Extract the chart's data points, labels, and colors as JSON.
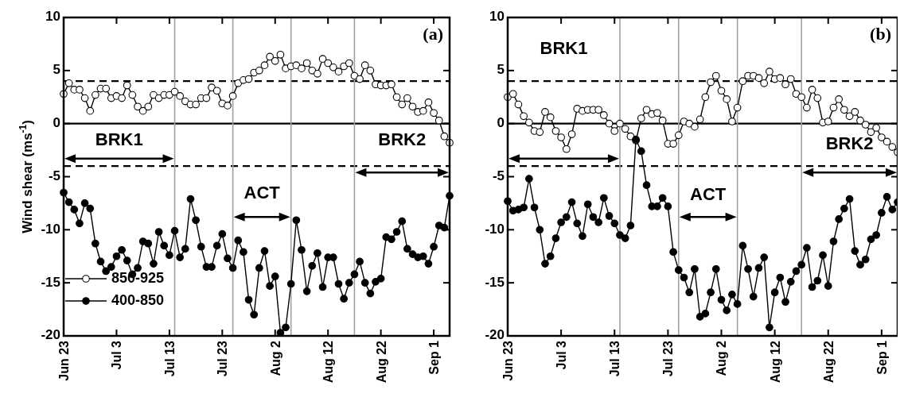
{
  "chart_data": [
    {
      "type": "line",
      "ylabel": "Wind shear (ms$^{-1}$)",
      "x": [
        "--06-23",
        "--06-24",
        "--06-25",
        "--06-26",
        "--06-27",
        "--06-28",
        "--06-29",
        "--06-30",
        "--07-01",
        "--07-02",
        "--07-03",
        "--07-04",
        "--07-05",
        "--07-06",
        "--07-07",
        "--07-08",
        "--07-09",
        "--07-10",
        "--07-11",
        "--07-12",
        "--07-13",
        "--07-14",
        "--07-15",
        "--07-16",
        "--07-17",
        "--07-18",
        "--07-19",
        "--07-20",
        "--07-21",
        "--07-22",
        "--07-23",
        "--07-24",
        "--07-25",
        "--07-26",
        "--07-27",
        "--07-28",
        "--07-29",
        "--07-30",
        "--07-31",
        "--08-01",
        "--08-02",
        "--08-03",
        "--08-04",
        "--08-05",
        "--08-06",
        "--08-07",
        "--08-08",
        "--08-09",
        "--08-10",
        "--08-11",
        "--08-12",
        "--08-13",
        "--08-14",
        "--08-15",
        "--08-16",
        "--08-17",
        "--08-18",
        "--08-19",
        "--08-20",
        "--08-21",
        "--08-22",
        "--08-23",
        "--08-24",
        "--08-25",
        "--08-26",
        "--08-27",
        "--08-28",
        "--08-29",
        "--08-30",
        "--08-31",
        "--09-01",
        "--09-02",
        "--09-03",
        "--09-04"
      ],
      "xlim": [
        "--06-23",
        "--09-04"
      ],
      "xticks": [
        {
          "value": "--06-23",
          "label": "Jun 23"
        },
        {
          "value": "--07-03",
          "label": "Jul 3"
        },
        {
          "value": "--07-13",
          "label": "Jul 13"
        },
        {
          "value": "--07-23",
          "label": "Jul 23"
        },
        {
          "value": "--08-02",
          "label": "Aug 2"
        },
        {
          "value": "--08-12",
          "label": "Aug 12"
        },
        {
          "value": "--08-22",
          "label": "Aug 22"
        },
        {
          "value": "--09-01",
          "label": "Sep 1"
        }
      ],
      "ylim": [
        -20,
        10
      ],
      "yticks": [
        -20,
        -15,
        -10,
        -5,
        0,
        5,
        10
      ],
      "series": [
        {
          "name": "850-925",
          "color": "#ffffff",
          "values": [
            2.8,
            3.8,
            3.2,
            3.2,
            2.4,
            1.2,
            2.7,
            3.3,
            3.3,
            2.4,
            2.6,
            2.4,
            3.6,
            2.7,
            1.6,
            1.2,
            1.6,
            2.7,
            2.4,
            2.7,
            2.7,
            3.0,
            2.6,
            2.1,
            1.8,
            1.8,
            2.4,
            2.4,
            3.4,
            3.1,
            1.9,
            1.7,
            2.6,
            3.8,
            4.1,
            4.2,
            4.8,
            5.0,
            5.5,
            6.3,
            5.9,
            6.5,
            5.2,
            5.4,
            5.5,
            5.2,
            5.7,
            5.0,
            4.7,
            6.1,
            5.7,
            5.3,
            4.9,
            5.4,
            5.7,
            4.5,
            4.2,
            5.5,
            5.0,
            3.7,
            3.6,
            3.6,
            3.7,
            2.5,
            1.8,
            2.4,
            1.6,
            1.1,
            1.2,
            2.0,
            1.0,
            0.3,
            -1.2,
            -1.8
          ]
        },
        {
          "name": "400-850",
          "color": "#000000",
          "values": [
            -6.5,
            -7.4,
            -8.1,
            -9.4,
            -7.5,
            -8.0,
            -11.3,
            -13.0,
            -13.9,
            -13.5,
            -12.5,
            -11.9,
            -12.9,
            -14.2,
            -13.6,
            -11.1,
            -11.3,
            -13.2,
            -10.2,
            -11.5,
            -12.4,
            -10.1,
            -12.6,
            -11.8,
            -7.1,
            -9.1,
            -11.6,
            -13.5,
            -13.5,
            -11.5,
            -10.4,
            -12.7,
            -13.6,
            -11.0,
            -12.1,
            -16.6,
            -18.0,
            -13.6,
            -12.0,
            -15.3,
            -14.4,
            -19.7,
            -19.2,
            -15.1,
            -9.1,
            -11.9,
            -15.8,
            -13.4,
            -12.2,
            -15.4,
            -12.6,
            -12.6,
            -15.1,
            -16.5,
            -15.0,
            -14.2,
            -13.0,
            -15.0,
            -16.0,
            -14.9,
            -14.6,
            -10.7,
            -10.9,
            -10.2,
            -9.2,
            -11.8,
            -12.3,
            -12.6,
            -12.5,
            -13.2,
            -11.6,
            -9.6,
            -9.8,
            -6.8
          ]
        }
      ],
      "marker": "circle",
      "line_style": "solid",
      "legend": "bottom left",
      "ref_lines": [
        {
          "axis": "y",
          "value": 4,
          "color": "#000000",
          "line_style": "dashed"
        },
        {
          "axis": "y",
          "value": -4,
          "color": "#000000",
          "line_style": "dashed"
        },
        {
          "axis": "y",
          "value": 0,
          "color": "#000000",
          "line_style": "solid"
        },
        {
          "axis": "x",
          "value": "--07-14",
          "color": "#a0a0a0",
          "line_style": "solid"
        },
        {
          "axis": "x",
          "value": "--07-25",
          "color": "#a0a0a0",
          "line_style": "solid"
        },
        {
          "axis": "x",
          "value": "--08-05",
          "color": "#a0a0a0",
          "line_style": "solid"
        },
        {
          "axis": "x",
          "value": "--08-17",
          "color": "#a0a0a0",
          "line_style": "solid"
        }
      ],
      "annotations": [
        "BRK1",
        "ACT",
        "BRK2",
        "(a)"
      ]
    },
    {
      "type": "line",
      "x": [
        "--06-23",
        "--06-24",
        "--06-25",
        "--06-26",
        "--06-27",
        "--06-28",
        "--06-29",
        "--06-30",
        "--07-01",
        "--07-02",
        "--07-03",
        "--07-04",
        "--07-05",
        "--07-06",
        "--07-07",
        "--07-08",
        "--07-09",
        "--07-10",
        "--07-11",
        "--07-12",
        "--07-13",
        "--07-14",
        "--07-15",
        "--07-16",
        "--07-17",
        "--07-18",
        "--07-19",
        "--07-20",
        "--07-21",
        "--07-22",
        "--07-23",
        "--07-24",
        "--07-25",
        "--07-26",
        "--07-27",
        "--07-28",
        "--07-29",
        "--07-30",
        "--07-31",
        "--08-01",
        "--08-02",
        "--08-03",
        "--08-04",
        "--08-05",
        "--08-06",
        "--08-07",
        "--08-08",
        "--08-09",
        "--08-10",
        "--08-11",
        "--08-12",
        "--08-13",
        "--08-14",
        "--08-15",
        "--08-16",
        "--08-17",
        "--08-18",
        "--08-19",
        "--08-20",
        "--08-21",
        "--08-22",
        "--08-23",
        "--08-24",
        "--08-25",
        "--08-26",
        "--08-27",
        "--08-28",
        "--08-29",
        "--08-30",
        "--08-31",
        "--09-01",
        "--09-02",
        "--09-03",
        "--09-04"
      ],
      "xlim": [
        "--06-23",
        "--09-04"
      ],
      "xticks": [
        {
          "value": "--06-23",
          "label": "Jun 23"
        },
        {
          "value": "--07-03",
          "label": "Jul 3"
        },
        {
          "value": "--07-13",
          "label": "Jul 13"
        },
        {
          "value": "--07-23",
          "label": "Jul 23"
        },
        {
          "value": "--08-02",
          "label": "Aug 2"
        },
        {
          "value": "--08-12",
          "label": "Aug 12"
        },
        {
          "value": "--08-22",
          "label": "Aug 22"
        },
        {
          "value": "--09-01",
          "label": "Sep 1"
        }
      ],
      "ylim": [
        -20,
        10
      ],
      "yticks": [
        -20,
        -15,
        -10,
        -5,
        0,
        5,
        10
      ],
      "series": [
        {
          "color": "#ffffff",
          "values": [
            2.5,
            2.8,
            1.8,
            0.7,
            0.1,
            -0.7,
            -0.8,
            1.1,
            0.6,
            -0.7,
            -1.3,
            -2.4,
            -1.0,
            1.4,
            1.2,
            1.3,
            1.3,
            1.3,
            0.8,
            0.0,
            -0.7,
            0.0,
            -0.5,
            -1.2,
            -1.6,
            0.5,
            1.3,
            0.9,
            1.0,
            0.3,
            -1.9,
            -1.9,
            -1.1,
            0.2,
            0.0,
            -0.3,
            0.4,
            2.5,
            3.9,
            4.5,
            3.1,
            2.3,
            0.2,
            1.5,
            4.0,
            4.5,
            4.5,
            4.3,
            3.8,
            4.9,
            4.2,
            4.3,
            3.7,
            4.2,
            2.8,
            2.5,
            1.5,
            3.2,
            2.4,
            0.1,
            0.2,
            1.5,
            2.3,
            1.3,
            0.7,
            1.1,
            0.3,
            -0.1,
            -0.8,
            -0.4,
            -1.3,
            -1.7,
            -2.2,
            -2.7
          ]
        },
        {
          "color": "#000000",
          "values": [
            -7.3,
            -8.2,
            -8.1,
            -7.9,
            -5.2,
            -7.9,
            -10.0,
            -13.2,
            -12.5,
            -10.8,
            -9.3,
            -8.8,
            -7.4,
            -9.4,
            -10.6,
            -7.6,
            -8.8,
            -9.3,
            -7.0,
            -8.7,
            -9.4,
            -10.5,
            -10.8,
            -9.6,
            -1.5,
            -2.6,
            -5.8,
            -7.8,
            -7.8,
            -7.0,
            -7.8,
            -12.1,
            -13.8,
            -14.5,
            -15.9,
            -13.7,
            -18.2,
            -17.9,
            -15.9,
            -13.7,
            -16.6,
            -17.6,
            -16.1,
            -17.0,
            -11.5,
            -13.7,
            -16.3,
            -13.6,
            -12.6,
            -19.2,
            -15.9,
            -14.5,
            -16.8,
            -14.9,
            -13.9,
            -13.3,
            -11.7,
            -15.4,
            -14.8,
            -12.4,
            -15.3,
            -11.1,
            -9.0,
            -8.0,
            -7.1,
            -12.0,
            -13.3,
            -12.8,
            -10.9,
            -10.5,
            -8.4,
            -6.9,
            -8.1,
            -7.4
          ]
        }
      ],
      "marker": "circle",
      "line_style": "solid",
      "ref_lines": [
        {
          "axis": "y",
          "value": 4,
          "color": "#000000",
          "line_style": "dashed"
        },
        {
          "axis": "y",
          "value": -4,
          "color": "#000000",
          "line_style": "dashed"
        },
        {
          "axis": "y",
          "value": 0,
          "color": "#000000",
          "line_style": "solid"
        },
        {
          "axis": "x",
          "value": "--07-14",
          "color": "#a0a0a0",
          "line_style": "solid"
        },
        {
          "axis": "x",
          "value": "--07-25",
          "color": "#a0a0a0",
          "line_style": "solid"
        },
        {
          "axis": "x",
          "value": "--08-05",
          "color": "#a0a0a0",
          "line_style": "solid"
        },
        {
          "axis": "x",
          "value": "--08-17",
          "color": "#a0a0a0",
          "line_style": "solid"
        }
      ],
      "annotations": [
        "BRK1",
        "ACT",
        "BRK2",
        "(b)"
      ]
    }
  ]
}
